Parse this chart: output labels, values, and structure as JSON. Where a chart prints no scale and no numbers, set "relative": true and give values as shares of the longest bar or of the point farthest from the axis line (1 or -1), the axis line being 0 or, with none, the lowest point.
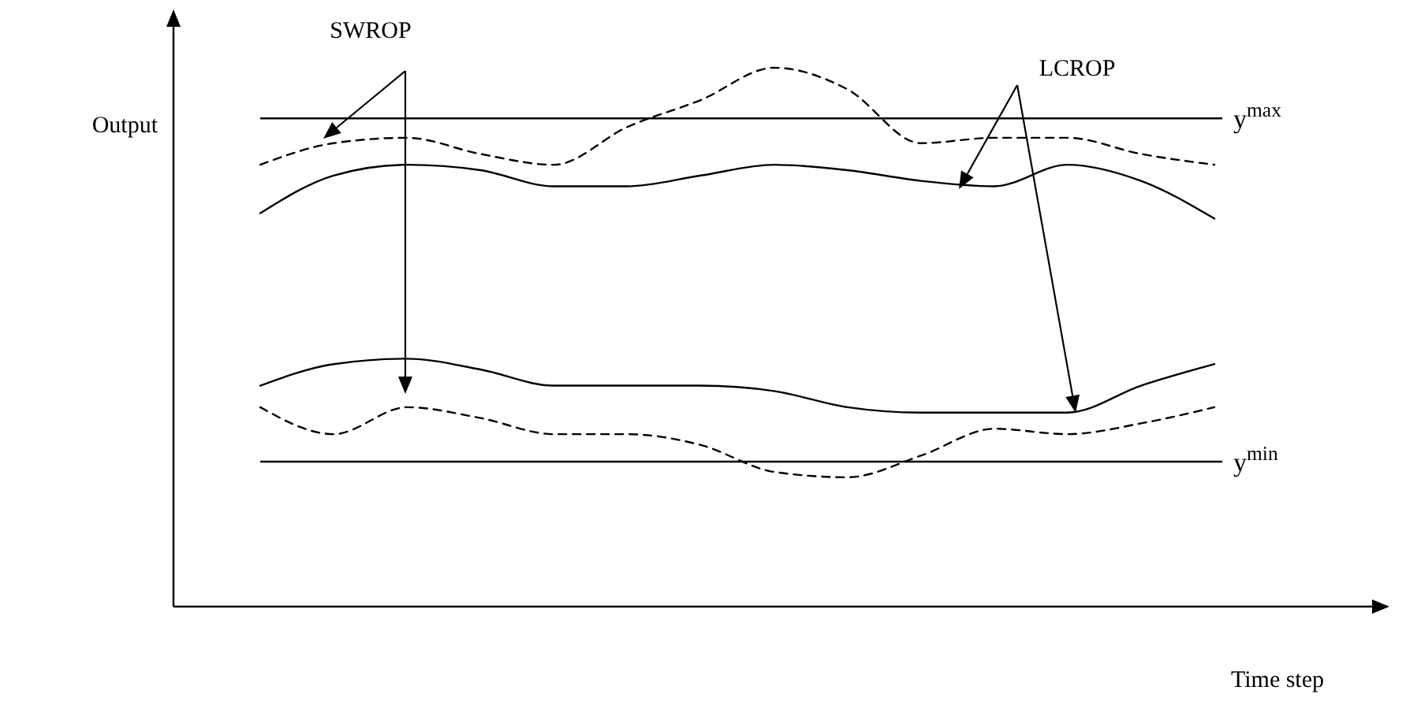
{
  "chart_data": {
    "type": "line",
    "relative": true,
    "xlabel": "Time step",
    "ylabel": "Output",
    "categories": [
      null,
      null,
      null,
      null,
      null,
      null,
      null,
      null,
      null,
      null,
      null,
      null,
      null,
      null
    ],
    "series": [
      {
        "color": "#000000",
        "line_style": "dashed",
        "values": [
          0.82,
          0.86,
          0.87,
          0.84,
          0.82,
          0.89,
          0.94,
          1,
          0.96,
          0.86,
          0.87,
          0.87,
          0.84,
          0.82
        ]
      },
      {
        "color": "#000000",
        "line_style": "solid",
        "values": [
          0.73,
          0.8,
          0.82,
          0.81,
          0.78,
          0.78,
          0.8,
          0.82,
          0.81,
          0.79,
          0.78,
          0.82,
          0.79,
          0.72
        ]
      },
      {
        "color": "#000000",
        "line_style": "solid",
        "values": [
          0.41,
          0.45,
          0.46,
          0.44,
          0.41,
          0.41,
          0.41,
          0.4,
          0.37,
          0.36,
          0.36,
          0.36,
          0.41,
          0.45
        ]
      },
      {
        "color": "#000000",
        "line_style": "dashed",
        "values": [
          0.37,
          0.32,
          0.37,
          0.35,
          0.32,
          0.32,
          0.3,
          0.25,
          0.24,
          0.28,
          0.33,
          0.32,
          0.34,
          0.37
        ]
      }
    ],
    "ref_lines": [
      {
        "axis": "y",
        "value": 0.906,
        "label": "y$^{max}$",
        "color": "#000000"
      },
      {
        "axis": "y",
        "value": 0.269,
        "label": "y$^{min}$",
        "color": "#000000"
      }
    ],
    "annotations": [
      "SWROP",
      "LCROP"
    ]
  }
}
